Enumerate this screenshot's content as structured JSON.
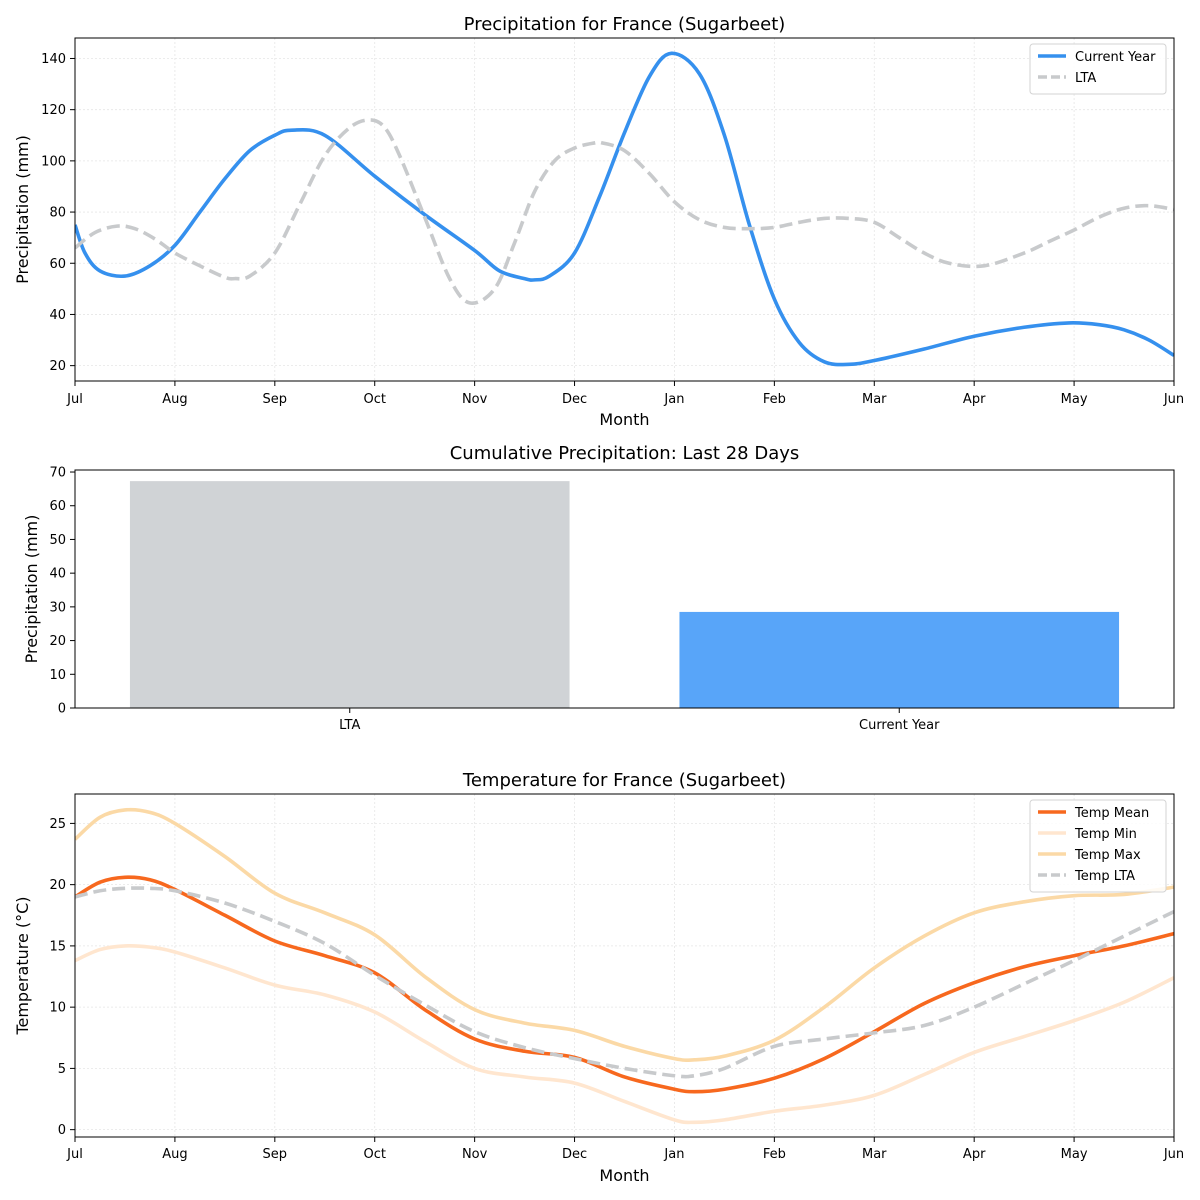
{
  "chart_data": [
    {
      "type": "line",
      "title": "Precipitation for France (Sugarbeet)",
      "xlabel": "Month",
      "ylabel": "Precipitation (mm)",
      "x_ticks": [
        "Jul",
        "Aug",
        "Sep",
        "Oct",
        "Nov",
        "Dec",
        "Jan",
        "Feb",
        "Mar",
        "Apr",
        "May",
        "Jun"
      ],
      "xlim": [
        0,
        11
      ],
      "ylim": [
        14,
        148
      ],
      "y_ticks": [
        20,
        40,
        60,
        80,
        100,
        120,
        140
      ],
      "grid": true,
      "legend_position": "top-right",
      "series": [
        {
          "name": "Current Year",
          "color": "#3590ee",
          "style": "solid",
          "x": [
            0,
            0.1,
            0.25,
            0.5,
            0.75,
            1,
            1.25,
            1.5,
            1.75,
            2,
            2.17,
            2.5,
            3,
            3.5,
            4,
            4.25,
            4.5,
            4.6,
            4.75,
            5,
            5.25,
            5.5,
            5.75,
            5.97,
            6.25,
            6.5,
            6.75,
            7,
            7.25,
            7.5,
            7.75,
            8,
            8.5,
            9,
            9.5,
            9.95,
            10.25,
            10.5,
            10.75,
            11
          ],
          "y": [
            75,
            64,
            57,
            55,
            59,
            67,
            80,
            93,
            104,
            110,
            112,
            110,
            94,
            79,
            65,
            57,
            54,
            53.5,
            55,
            64,
            86,
            111,
            133,
            142,
            134,
            110,
            75,
            46,
            29,
            21.5,
            20.5,
            22,
            26.5,
            31.5,
            35,
            36.7,
            36,
            34,
            30,
            24
          ]
        },
        {
          "name": "LTA",
          "color": "#c8cacc",
          "style": "dashed",
          "x": [
            0,
            0.2,
            0.42,
            0.6,
            0.8,
            1,
            1.25,
            1.5,
            1.6,
            1.75,
            2,
            2.25,
            2.5,
            2.75,
            2.95,
            3.1,
            3.25,
            3.5,
            3.75,
            3.95,
            4.2,
            4.4,
            4.6,
            4.8,
            5,
            5.2,
            5.28,
            5.5,
            5.75,
            6,
            6.25,
            6.5,
            6.75,
            7,
            7.25,
            7.5,
            7.75,
            8,
            8.25,
            8.5,
            8.75,
            9.1,
            9.5,
            9.75,
            10,
            10.25,
            10.5,
            10.75,
            11
          ],
          "y": [
            66,
            72,
            74.5,
            73.5,
            69.5,
            64,
            59,
            54.5,
            54,
            55,
            64,
            83,
            102,
            113,
            116,
            113,
            102,
            78,
            54,
            44.5,
            50,
            68,
            88,
            100,
            105,
            107,
            107,
            104,
            95,
            84,
            77,
            74,
            73.5,
            74,
            76,
            77.5,
            77.5,
            76,
            70,
            64,
            60,
            59,
            64,
            68.5,
            73,
            78,
            81.5,
            82.5,
            81
          ]
        }
      ]
    },
    {
      "type": "bar",
      "title": "Cumulative Precipitation: Last 28 Days",
      "xlabel": "",
      "ylabel": "Precipitation (mm)",
      "categories": [
        "LTA",
        "Current Year"
      ],
      "values": [
        67.3,
        28.5
      ],
      "colors": [
        "#d0d3d6",
        "#58a5f9"
      ],
      "ylim": [
        0,
        70.6
      ],
      "y_ticks": [
        0,
        10,
        20,
        30,
        40,
        50,
        60,
        70
      ],
      "grid": false
    },
    {
      "type": "line",
      "title": "Temperature for France (Sugarbeet)",
      "xlabel": "Month",
      "ylabel": "Temperature (°C)",
      "x_ticks": [
        "Jul",
        "Aug",
        "Sep",
        "Oct",
        "Nov",
        "Dec",
        "Jan",
        "Feb",
        "Mar",
        "Apr",
        "May",
        "Jun"
      ],
      "xlim": [
        0,
        11
      ],
      "ylim": [
        -0.6,
        27.4
      ],
      "y_ticks": [
        0,
        5,
        10,
        15,
        20,
        25
      ],
      "grid": true,
      "legend_position": "top-right",
      "series": [
        {
          "name": "Temp Mean",
          "color": "#f7681e",
          "style": "solid",
          "x": [
            0,
            0.25,
            0.5,
            0.75,
            1,
            1.5,
            2,
            2.5,
            3,
            3.5,
            4,
            4.5,
            5,
            5.5,
            6,
            6.2,
            6.5,
            7,
            7.5,
            8,
            8.5,
            9,
            9.5,
            10,
            10.5,
            11
          ],
          "y": [
            19,
            20.2,
            20.6,
            20.4,
            19.6,
            17.5,
            15.4,
            14.2,
            12.8,
            9.8,
            7.4,
            6.4,
            5.9,
            4.3,
            3.3,
            3.1,
            3.3,
            4.2,
            5.8,
            8,
            10.3,
            12,
            13.3,
            14.2,
            15,
            16
          ]
        },
        {
          "name": "Temp Min",
          "color": "#ffe6cf",
          "style": "solid",
          "x": [
            0,
            0.25,
            0.5,
            0.75,
            1,
            1.5,
            2,
            2.5,
            3,
            3.5,
            4,
            4.5,
            5,
            5.5,
            6,
            6.2,
            6.5,
            7,
            7.5,
            8,
            8.5,
            9,
            9.5,
            10,
            10.5,
            11
          ],
          "y": [
            13.8,
            14.7,
            15,
            14.9,
            14.5,
            13.2,
            11.8,
            11,
            9.6,
            7.2,
            5,
            4.3,
            3.8,
            2.3,
            0.8,
            0.6,
            0.8,
            1.5,
            2,
            2.8,
            4.5,
            6.3,
            7.6,
            8.9,
            10.4,
            12.4
          ]
        },
        {
          "name": "Temp Max",
          "color": "#fbd9a6",
          "style": "solid",
          "x": [
            0,
            0.25,
            0.5,
            0.75,
            1,
            1.5,
            2,
            2.5,
            3,
            3.5,
            4,
            4.5,
            5,
            5.5,
            6,
            6.2,
            6.5,
            7,
            7.5,
            8,
            8.5,
            9,
            9.5,
            10,
            10.5,
            11
          ],
          "y": [
            23.7,
            25.5,
            26.1,
            25.9,
            25,
            22.3,
            19.3,
            17.7,
            15.9,
            12.5,
            9.8,
            8.7,
            8.1,
            6.8,
            5.8,
            5.7,
            6,
            7.3,
            10,
            13.2,
            15.8,
            17.7,
            18.6,
            19.1,
            19.2,
            19.8
          ]
        },
        {
          "name": "Temp LTA",
          "color": "#c8cacc",
          "style": "dashed",
          "x": [
            0,
            0.25,
            0.5,
            0.75,
            1,
            1.5,
            2,
            2.5,
            3,
            3.5,
            4,
            4.5,
            5,
            5.5,
            6,
            6.2,
            6.5,
            7,
            7.5,
            8,
            8.5,
            9,
            9.5,
            10,
            10.5,
            11
          ],
          "y": [
            19,
            19.5,
            19.7,
            19.7,
            19.5,
            18.5,
            17,
            15.2,
            12.6,
            10.2,
            8,
            6.7,
            5.8,
            5,
            4.4,
            4.4,
            5,
            6.8,
            7.4,
            7.9,
            8.5,
            10,
            11.9,
            13.8,
            15.8,
            17.8
          ]
        }
      ]
    }
  ]
}
